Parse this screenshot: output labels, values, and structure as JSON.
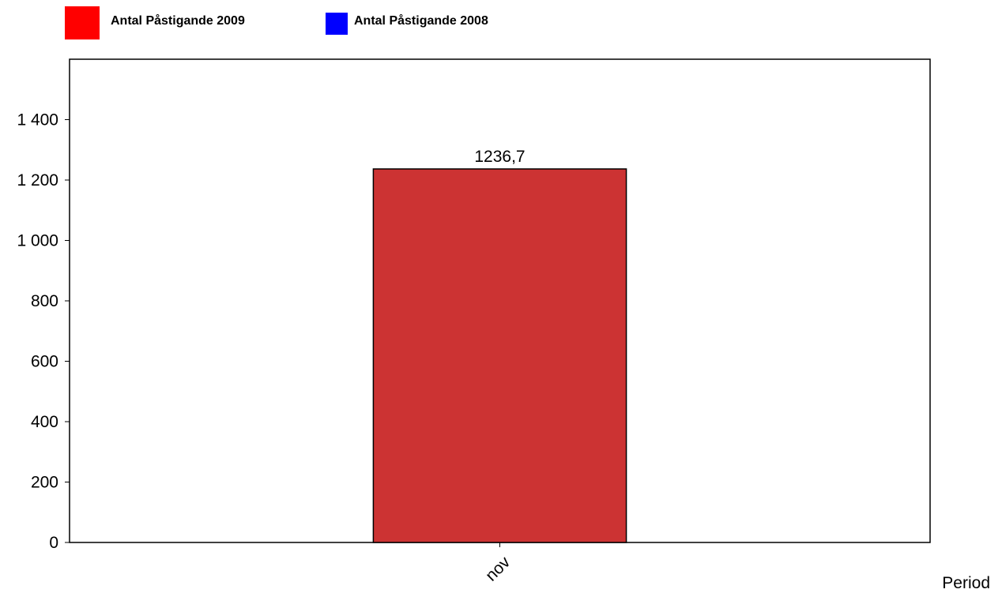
{
  "chart_data": {
    "type": "bar",
    "categories": [
      "nov"
    ],
    "series": [
      {
        "name": "Antal Påstigande 2009",
        "color": "#cc3333",
        "legend_color": "#ff0000",
        "values": [
          1236.7
        ]
      },
      {
        "name": "Antal Påstigande 2008",
        "color": "#0000ff",
        "legend_color": "#0000ff",
        "values": [
          null
        ]
      }
    ],
    "data_labels": [
      "1236,7"
    ],
    "xlabel": "Period",
    "ylabel": "",
    "ylim": [
      0,
      1600
    ],
    "yticks": [
      0,
      200,
      400,
      600,
      800,
      1000,
      1200,
      1400
    ],
    "ytick_labels": [
      "0",
      "200",
      "400",
      "600",
      "800",
      "1 000",
      "1 200",
      "1 400"
    ],
    "grid": false,
    "legend_position": "top-left"
  }
}
